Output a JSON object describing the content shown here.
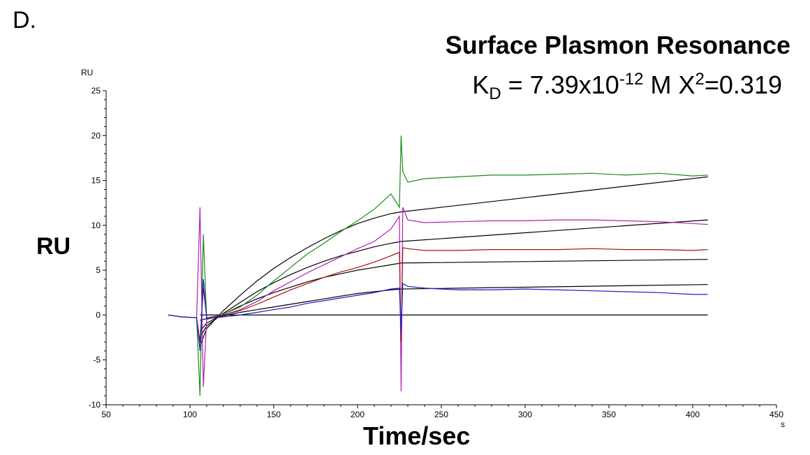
{
  "panel_label": "D.",
  "title": "Surface Plasmon Resonance",
  "kd": {
    "prefix": "K",
    "sub": "D",
    "middle": " = 7.39x10",
    "exp": "-12",
    "unit": " M  X",
    "chi_exp": "2",
    "chi_val": "=0.319"
  },
  "y_axis_label_big": "RU",
  "x_axis_label_big": "Time/sec",
  "chart_data": {
    "type": "line",
    "y_unit": "RU",
    "x_unit": "s",
    "xlim": [
      50,
      450
    ],
    "ylim": [
      -10,
      25
    ],
    "x_ticks": [
      50,
      100,
      150,
      200,
      250,
      300,
      350,
      400,
      450
    ],
    "y_ticks": [
      -10,
      -5,
      0,
      5,
      10,
      15,
      20,
      25
    ],
    "colors": {
      "green": "#1a8a1a",
      "purple": "#b020b0",
      "red": "#a01515",
      "blue": "#1a1acc",
      "fit": "#000000"
    },
    "series": [
      {
        "color": "green",
        "x": [
          87,
          95,
          104,
          106,
          108,
          110,
          120,
          130,
          140,
          150,
          160,
          170,
          180,
          190,
          200,
          210,
          220,
          225,
          226,
          227,
          230,
          240,
          260,
          280,
          300,
          320,
          340,
          360,
          380,
          400,
          409
        ],
        "y": [
          0,
          -0.2,
          -0.3,
          -9,
          9,
          -0.5,
          0.1,
          0.9,
          2.2,
          3.8,
          5.3,
          6.8,
          8.0,
          9.3,
          10.5,
          11.8,
          13.5,
          12,
          20,
          16,
          14.8,
          15.2,
          15.4,
          15.6,
          15.6,
          15.7,
          15.8,
          15.6,
          15.8,
          15.5,
          15.6
        ]
      },
      {
        "color": "purple",
        "x": [
          87,
          95,
          104,
          106,
          108,
          110,
          120,
          130,
          140,
          150,
          160,
          170,
          180,
          190,
          200,
          210,
          220,
          225,
          226,
          227,
          230,
          240,
          260,
          280,
          300,
          320,
          340,
          360,
          380,
          400,
          409
        ],
        "y": [
          0,
          -0.2,
          -0.3,
          12,
          -8,
          -0.4,
          0,
          0.6,
          1.5,
          2.7,
          3.7,
          4.7,
          5.6,
          6.5,
          7.4,
          8.2,
          9.6,
          11,
          -8.5,
          12,
          10.6,
          10.3,
          10.4,
          10.5,
          10.5,
          10.6,
          10.6,
          10.5,
          10.4,
          10.2,
          10.1
        ]
      },
      {
        "color": "red",
        "x": [
          87,
          95,
          104,
          106,
          108,
          110,
          120,
          130,
          140,
          150,
          160,
          170,
          180,
          190,
          200,
          210,
          220,
          225,
          226,
          227,
          230,
          240,
          260,
          280,
          300,
          320,
          340,
          360,
          380,
          400,
          409
        ],
        "y": [
          0,
          -0.2,
          -0.3,
          -3,
          3,
          -0.3,
          0,
          0.5,
          1.2,
          2.0,
          2.8,
          3.5,
          4.2,
          4.8,
          5.3,
          5.9,
          6.6,
          7,
          -3,
          7.5,
          7.4,
          7.2,
          7.2,
          7.3,
          7.3,
          7.3,
          7.4,
          7.3,
          7.3,
          7.2,
          7.3
        ]
      },
      {
        "color": "blue",
        "x": [
          87,
          95,
          104,
          106,
          108,
          110,
          120,
          130,
          140,
          150,
          160,
          170,
          180,
          190,
          200,
          210,
          220,
          225,
          226,
          227,
          230,
          240,
          260,
          280,
          300,
          320,
          340,
          360,
          380,
          400,
          409
        ],
        "y": [
          0,
          -0.2,
          -0.3,
          -4,
          4,
          -0.4,
          -0.2,
          0,
          0.3,
          0.6,
          0.9,
          1.3,
          1.6,
          1.9,
          2.2,
          2.5,
          2.9,
          3,
          -2,
          3.5,
          3.2,
          3.0,
          2.8,
          2.8,
          2.9,
          2.8,
          2.7,
          2.6,
          2.5,
          2.3,
          2.3
        ]
      }
    ],
    "fits": [
      {
        "x": [
          106,
          110,
          120,
          130,
          140,
          150,
          160,
          170,
          180,
          190,
          200,
          210,
          220,
          226,
          409
        ],
        "y": [
          -3.5,
          -1.5,
          0.5,
          2.2,
          3.8,
          5.2,
          6.4,
          7.5,
          8.5,
          9.4,
          10.2,
          10.8,
          11.3,
          11.5,
          15.4
        ]
      },
      {
        "x": [
          106,
          110,
          120,
          130,
          140,
          150,
          160,
          170,
          180,
          190,
          200,
          210,
          220,
          226,
          409
        ],
        "y": [
          -2.5,
          -1.2,
          0.2,
          1.4,
          2.6,
          3.6,
          4.5,
          5.3,
          6.0,
          6.6,
          7.1,
          7.6,
          8.0,
          8.2,
          10.6
        ]
      },
      {
        "x": [
          106,
          110,
          120,
          130,
          140,
          150,
          160,
          170,
          180,
          190,
          200,
          210,
          220,
          226,
          409
        ],
        "y": [
          -1.8,
          -0.9,
          0.1,
          1.0,
          1.8,
          2.5,
          3.1,
          3.7,
          4.2,
          4.6,
          5.0,
          5.3,
          5.6,
          5.8,
          6.2
        ]
      },
      {
        "x": [
          106,
          110,
          120,
          130,
          140,
          150,
          160,
          170,
          180,
          190,
          200,
          210,
          220,
          226,
          409
        ],
        "y": [
          -0.6,
          -0.4,
          -0.1,
          0.3,
          0.6,
          0.9,
          1.2,
          1.5,
          1.8,
          2.1,
          2.4,
          2.6,
          2.8,
          2.9,
          3.4
        ]
      },
      {
        "x": [
          106,
          409
        ],
        "y": [
          0,
          0
        ]
      }
    ]
  }
}
